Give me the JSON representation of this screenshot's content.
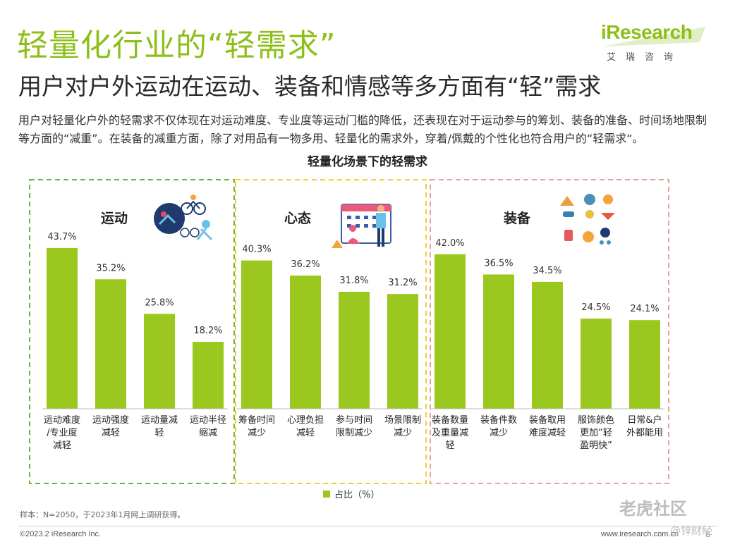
{
  "header": {
    "title": "轻量化行业的“轻需求”",
    "subtitle": "用户对户外运动在运动、装备和情感等多方面有“轻”需求"
  },
  "logo": {
    "brand": "iResearch",
    "brand_cn": "艾瑞咨询"
  },
  "description": "用户对轻量化户外的轻需求不仅体现在对运动难度、专业度等运动门槛的降低，还表现在对于运动参与的筹划、装备的准备、时间场地限制等方面的“减重”。在装备的减重方面，除了对用品有一物多用、轻量化的需求外，穿着/佩戴的个性化也符合用户的“轻需求“。",
  "chart_data": {
    "type": "bar",
    "title": "轻量化场景下的轻需求",
    "groups": [
      {
        "name": "运动",
        "border_color": "#6db33f",
        "categories": [
          "运动难度/专业度减轻",
          "运动强度减轻",
          "运动量减轻",
          "运动半径缩减"
        ],
        "values": [
          43.7,
          35.2,
          25.8,
          18.2
        ],
        "value_labels": [
          "43.7%",
          "35.2%",
          "25.8%",
          "18.2%"
        ]
      },
      {
        "name": "心态",
        "border_color": "#e8d62a",
        "categories": [
          "筹备时间减少",
          "心理负担减轻",
          "参与时间限制减少",
          "场景限制减少"
        ],
        "values": [
          40.3,
          36.2,
          31.8,
          31.2
        ],
        "value_labels": [
          "40.3%",
          "36.2%",
          "31.8%",
          "31.2%"
        ]
      },
      {
        "name": "装备",
        "border_color": "#e8a0a0",
        "categories": [
          "装备数量及重量减轻",
          "装备件数减少",
          "装备取用难度减轻",
          "服饰颜色更加“轻盈明快”",
          "日常&户外都能用"
        ],
        "values": [
          42.0,
          36.5,
          34.5,
          24.5,
          24.1
        ],
        "value_labels": [
          "42.0%",
          "36.5%",
          "34.5%",
          "24.5%",
          "24.1%"
        ]
      }
    ],
    "legend": {
      "label": "占比（%）",
      "placement": "bottom-center"
    },
    "ylim": [
      0,
      45
    ],
    "bar_color": "#9ac81e"
  },
  "footer": {
    "note": "样本：N=2050，于2023年1月网上调研获得。",
    "copyright": "©2023.2 iResearch Inc.",
    "site": "www.iresearch.com.cn",
    "page": "8"
  },
  "watermarks": {
    "community": "老虎社区",
    "media": "@锌财经"
  }
}
